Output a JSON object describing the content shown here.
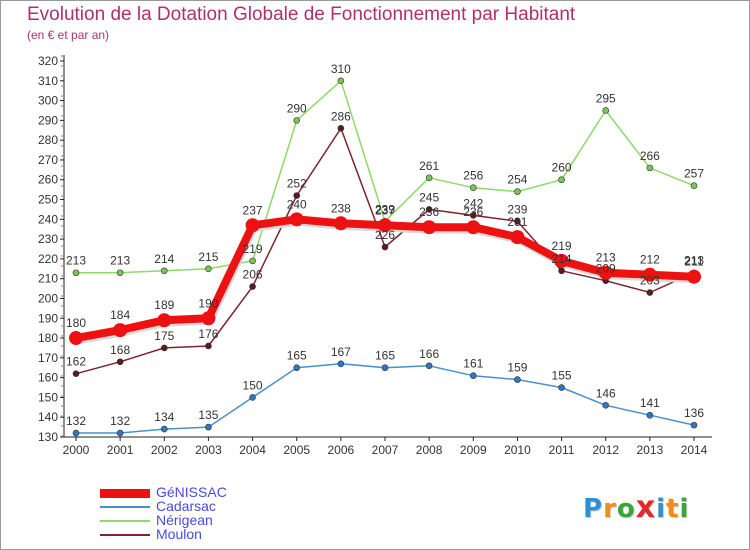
{
  "title": "Evolution de la Dotation Globale de Fonctionnement par Habitant",
  "subtitle": "(en € et par an)",
  "logo": {
    "text": "Proxiti",
    "letters": [
      {
        "ch": "P",
        "color": "#2f8fd5"
      },
      {
        "ch": "r",
        "color": "#f08c1a"
      },
      {
        "ch": "o",
        "color": "#3aa63a"
      },
      {
        "ch": "x",
        "color": "#e32a2a"
      },
      {
        "ch": "i",
        "color": "#2f8fd5"
      },
      {
        "ch": "t",
        "color": "#f08c1a"
      },
      {
        "ch": "i",
        "color": "#3aa63a"
      }
    ]
  },
  "chart_data": {
    "type": "line",
    "title": "Evolution de la Dotation Globale de Fonctionnement par Habitant",
    "subtitle": "(en € et par an)",
    "xlabel": "",
    "ylabel": "",
    "categories": [
      "2000",
      "2001",
      "2002",
      "2003",
      "2004",
      "2005",
      "2006",
      "2007",
      "2008",
      "2009",
      "2010",
      "2011",
      "2012",
      "2013",
      "2014"
    ],
    "ylim": [
      130,
      320
    ],
    "yticks": [
      130,
      140,
      150,
      160,
      170,
      180,
      190,
      200,
      210,
      220,
      230,
      240,
      250,
      260,
      270,
      280,
      290,
      300,
      310,
      320
    ],
    "grid": false,
    "legend_position": "bottom-left",
    "series": [
      {
        "name": "Cadarsac",
        "color": "#4a90cc",
        "point_color": "#2f78c0",
        "width": "thin",
        "values": [
          132,
          132,
          134,
          135,
          150,
          165,
          167,
          165,
          166,
          161,
          159,
          155,
          146,
          141,
          136
        ]
      },
      {
        "name": "Nérigean",
        "color": "#8ed96a",
        "point_color": "#7ac655",
        "width": "thin",
        "values": [
          213,
          213,
          214,
          215,
          219,
          290,
          310,
          239,
          261,
          256,
          254,
          260,
          295,
          266,
          257
        ]
      },
      {
        "name": "Moulon",
        "color": "#7a2530",
        "point_color": "#5a1a20",
        "width": "thin",
        "values": [
          162,
          168,
          175,
          176,
          206,
          252,
          286,
          226,
          245,
          242,
          239,
          214,
          209,
          203,
          213
        ]
      },
      {
        "name": "GéNISSAC",
        "color": "#ee1111",
        "point_color": "#ee1111",
        "width": "thick",
        "values": [
          180,
          184,
          189,
          190,
          237,
          240,
          238,
          237,
          236,
          236,
          231,
          219,
          213,
          212,
          211
        ]
      }
    ],
    "legend_order": [
      "GéNISSAC",
      "Cadarsac",
      "Nérigean",
      "Moulon"
    ]
  }
}
